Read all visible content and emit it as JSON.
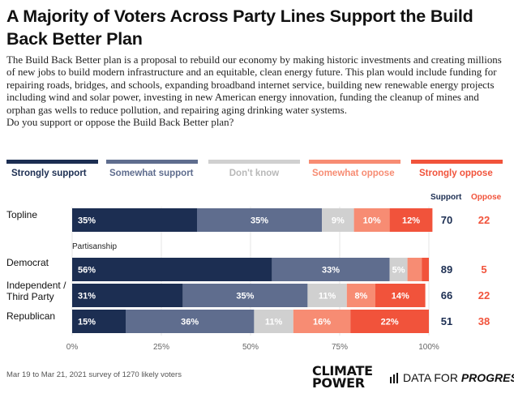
{
  "title": "A Majority of Voters Across Party Lines Support the Build Back Better Plan",
  "description": [
    "The Build Back Better plan is a proposal to rebuild our economy by making historic investments and creating millions of new jobs to build modern infrastructure and an equitable, clean energy future. This plan would include funding for repairing roads, bridges, and schools, expanding broadband internet service, building new renewable energy projects including wind and solar power, investing in new American energy innovation, funding the cleanup of mines and orphan gas wells to reduce pollution, and repairing aging drinking water systems.",
    "Do you support or oppose the Build Back Better plan?"
  ],
  "headers": {
    "support": "Support",
    "oppose": "Oppose"
  },
  "subheader": "Partisanship",
  "footnote": "Mar 19 to Mar 21, 2021 survey of 1270 likely voters",
  "logos": {
    "climate_power_line1": "CLIMATE",
    "climate_power_line2": "POWER",
    "dfp_text": "DATA FOR ",
    "dfp_emph": "PROGRESS"
  },
  "colors": {
    "strongly_support": "#1c2e52",
    "somewhat_support": "#5f6d8e",
    "dont_know": "#d0d0d0",
    "somewhat_oppose": "#f78c73",
    "strongly_oppose": "#f1533b"
  },
  "chart_data": {
    "type": "bar",
    "orientation": "horizontal",
    "stacked": true,
    "xlim": [
      0,
      100
    ],
    "x_ticks": [
      "0%",
      "25%",
      "50%",
      "75%",
      "100%"
    ],
    "legend_position": "top",
    "series": [
      {
        "name": "Strongly support",
        "color": "#1c2e52",
        "values": [
          35,
          56,
          31,
          15
        ]
      },
      {
        "name": "Somewhat support",
        "color": "#5f6d8e",
        "values": [
          35,
          33,
          35,
          36
        ]
      },
      {
        "name": "Don't know",
        "color": "#d0d0d0",
        "values": [
          9,
          5,
          11,
          11
        ]
      },
      {
        "name": "Somewhat oppose",
        "color": "#f78c73",
        "values": [
          10,
          4,
          8,
          16
        ]
      },
      {
        "name": "Strongly oppose",
        "color": "#f1533b",
        "values": [
          12,
          2,
          14,
          22
        ]
      }
    ],
    "categories": [
      "Topline",
      "Democrat",
      "Independent / Third Party",
      "Republican"
    ],
    "support_totals": [
      70,
      89,
      66,
      51
    ],
    "oppose_totals": [
      22,
      5,
      22,
      38
    ]
  }
}
